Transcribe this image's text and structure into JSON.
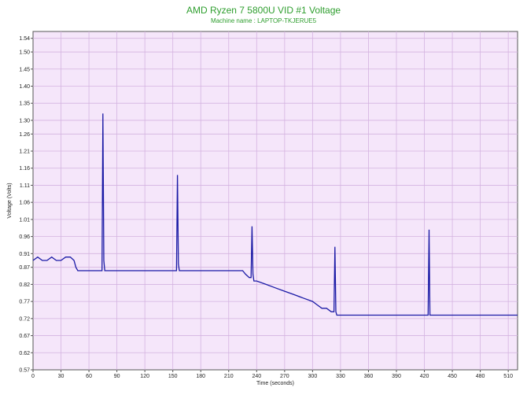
{
  "chart_data": {
    "type": "line",
    "title": "AMD Ryzen 7 5800U VID #1 Voltage",
    "subtitle": "Machine name : LAPTOP-TKJERUE5",
    "xlabel": "Time (seconds)",
    "ylabel": "Voltage (Volts)",
    "xlim": [
      0,
      520
    ],
    "ylim": [
      0.57,
      1.56
    ],
    "xticks": [
      "0",
      "30",
      "60",
      "90",
      "120",
      "150",
      "180",
      "210",
      "240",
      "270",
      "300",
      "330",
      "360",
      "390",
      "420",
      "450",
      "480",
      "510"
    ],
    "yticks": [
      "0.57",
      "0.62",
      "0.67",
      "0.72",
      "0.77",
      "0.82",
      "0.87",
      "0.91",
      "0.96",
      "1.01",
      "1.06",
      "1.11",
      "1.16",
      "1.21",
      "1.26",
      "1.30",
      "1.35",
      "1.40",
      "1.45",
      "1.50",
      "1.54"
    ],
    "grid": true,
    "colors": {
      "line": "#1a1aa6",
      "plot_background": "#f5e6fa",
      "grid": "#d4b3e0",
      "title": "#2e9e2e"
    },
    "series": [
      {
        "x": [
          0,
          5,
          10,
          15,
          20,
          25,
          30,
          35,
          40,
          44,
          46,
          48,
          50,
          55,
          60,
          65,
          70,
          74,
          75,
          76,
          77,
          78,
          80,
          90,
          100,
          110,
          120,
          130,
          140,
          150,
          154,
          155,
          156,
          157,
          158,
          160,
          170,
          180,
          190,
          200,
          210,
          220,
          225,
          228,
          232,
          234,
          235,
          236,
          237,
          238,
          240,
          250,
          260,
          270,
          280,
          290,
          300,
          305,
          310,
          315,
          320,
          323,
          324,
          325,
          326,
          327,
          328,
          330,
          340,
          350,
          360,
          370,
          380,
          390,
          400,
          410,
          420,
          424,
          425,
          426,
          427,
          428,
          430,
          440,
          450,
          460,
          470,
          480,
          490,
          500,
          510,
          520
        ],
        "y": [
          0.89,
          0.9,
          0.89,
          0.89,
          0.9,
          0.89,
          0.89,
          0.9,
          0.9,
          0.89,
          0.87,
          0.86,
          0.86,
          0.86,
          0.86,
          0.86,
          0.86,
          0.86,
          1.32,
          0.89,
          0.86,
          0.86,
          0.86,
          0.86,
          0.86,
          0.86,
          0.86,
          0.86,
          0.86,
          0.86,
          0.86,
          1.14,
          0.88,
          0.86,
          0.86,
          0.86,
          0.86,
          0.86,
          0.86,
          0.86,
          0.86,
          0.86,
          0.86,
          0.85,
          0.84,
          0.84,
          0.99,
          0.85,
          0.83,
          0.83,
          0.83,
          0.82,
          0.81,
          0.8,
          0.79,
          0.78,
          0.77,
          0.76,
          0.75,
          0.75,
          0.74,
          0.74,
          0.93,
          0.74,
          0.73,
          0.73,
          0.73,
          0.73,
          0.73,
          0.73,
          0.73,
          0.73,
          0.73,
          0.73,
          0.73,
          0.73,
          0.73,
          0.73,
          0.98,
          0.73,
          0.73,
          0.73,
          0.73,
          0.73,
          0.73,
          0.73,
          0.73,
          0.73,
          0.73,
          0.73,
          0.73,
          0.73
        ]
      }
    ]
  }
}
